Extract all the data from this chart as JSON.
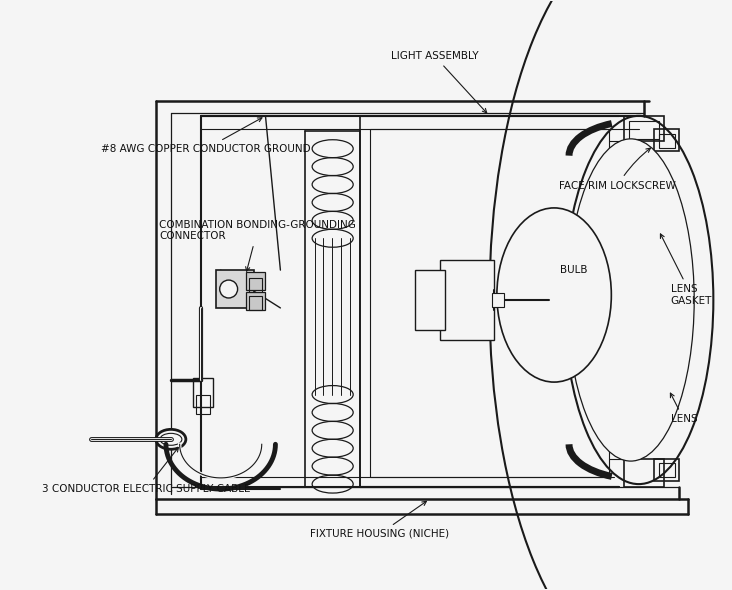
{
  "background_color": "#f5f5f5",
  "line_color": "#1a1a1a",
  "text_color": "#111111",
  "font_size": 7.5,
  "bold_font_size": 7.5,
  "labels": {
    "light_assembly": "LIGHT ASSEMBLY",
    "awg": "#8 AWG COPPER CONDUCTOR GROUND",
    "bonding": "COMBINATION BONDING-GROUNDING\nCONNECTOR",
    "lockscrew": "FACE RIM LOCKSCREW",
    "gasket": "LENS\nGASKET",
    "bulb": "BULB",
    "lens": "LENS",
    "cable": "3 CONDUCTOR ELECTRIC SUPPLY CABLE",
    "niche": "FIXTURE HOUSING (NICHE)"
  }
}
